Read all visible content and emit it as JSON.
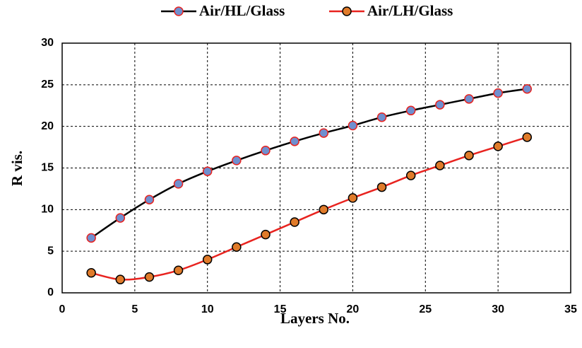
{
  "chart_data": {
    "type": "line",
    "xlabel": "Layers No.",
    "ylabel": "R vis.",
    "x": [
      2,
      4,
      6,
      8,
      10,
      12,
      14,
      16,
      18,
      20,
      22,
      24,
      26,
      28,
      30,
      32
    ],
    "series": [
      {
        "name": "Air/HL/Glass",
        "color": "#000000",
        "marker_color": "#6f8fcf",
        "marker_edge": "#e8231f",
        "values": [
          6.6,
          9.0,
          11.2,
          13.1,
          14.6,
          15.9,
          17.1,
          18.2,
          19.2,
          20.1,
          21.1,
          21.9,
          22.6,
          23.3,
          24.0,
          24.5
        ]
      },
      {
        "name": "Air/LH/Glass",
        "color": "#e8231f",
        "marker_color": "#e07b2a",
        "marker_edge": "#000000",
        "values": [
          2.4,
          1.6,
          1.9,
          2.7,
          4.0,
          5.5,
          7.0,
          8.5,
          10.0,
          11.4,
          12.7,
          14.1,
          15.3,
          16.5,
          17.6,
          18.7
        ]
      }
    ],
    "xlim": [
      0,
      35
    ],
    "xticks": [
      0,
      5,
      10,
      15,
      20,
      25,
      30,
      35
    ],
    "ylim": [
      0,
      30
    ],
    "yticks": [
      0,
      5,
      10,
      15,
      20,
      25,
      30
    ],
    "grid": true,
    "legend": "top"
  }
}
